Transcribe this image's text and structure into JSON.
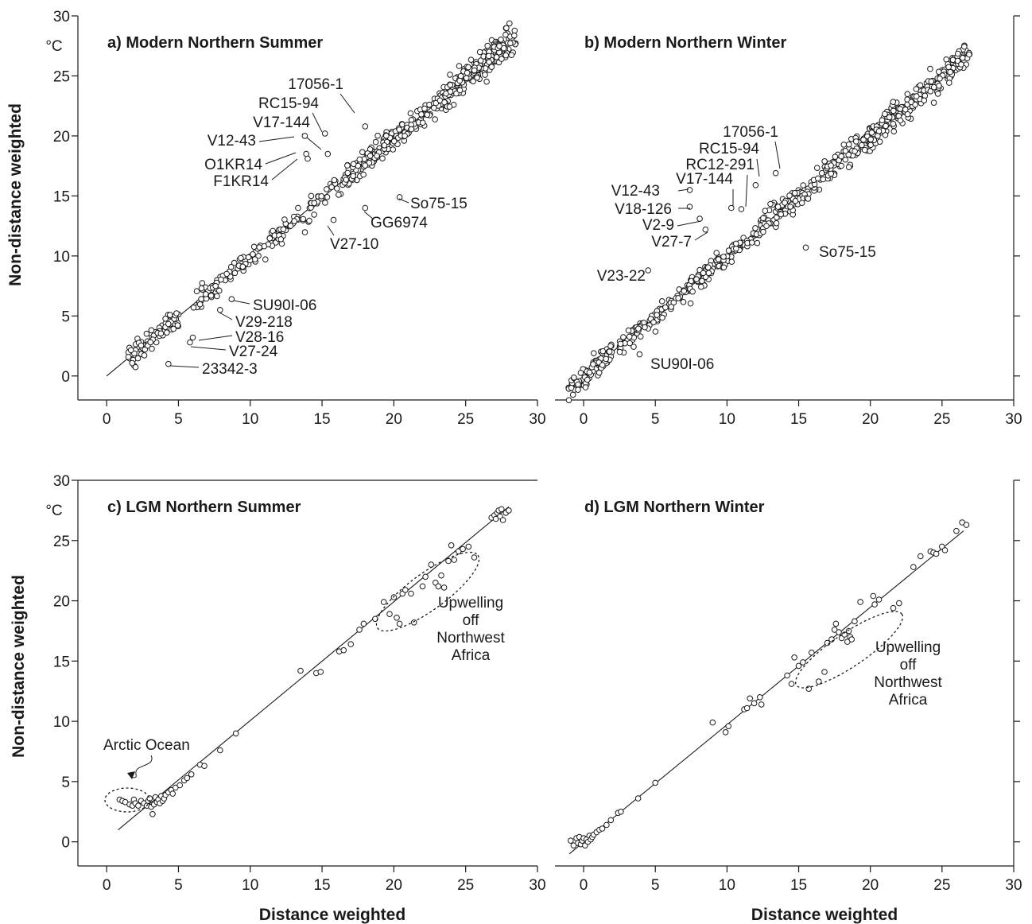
{
  "figure": {
    "ylabel": "Non-distance weighted",
    "xlabel": "Distance weighted",
    "unit": "°C"
  },
  "chart_data": [
    {
      "type": "scatter",
      "title": "a) Modern Northern Summer",
      "xlabel": "",
      "ylabel": "Non-distance weighted",
      "xlim": [
        -2,
        30
      ],
      "ylim": [
        -2,
        30
      ],
      "xticks": [
        0,
        5,
        10,
        15,
        20,
        25,
        30
      ],
      "yticks": [
        0,
        5,
        10,
        15,
        20,
        25,
        30
      ],
      "unit": "°C",
      "fit_line": {
        "x": [
          0,
          28.5
        ],
        "y": [
          0,
          28.2
        ]
      },
      "dense_segments": [
        {
          "x0": 1.5,
          "x1": 5.0,
          "n": 80,
          "scatter": 0.5
        },
        {
          "x0": 6.0,
          "x1": 12.0,
          "n": 90,
          "scatter": 0.35
        },
        {
          "x0": 12.0,
          "x1": 16.5,
          "n": 60,
          "scatter": 0.5
        },
        {
          "x0": 16.5,
          "x1": 23.5,
          "n": 180,
          "scatter": 0.45
        },
        {
          "x0": 23.5,
          "x1": 28.5,
          "n": 200,
          "scatter": 0.6
        }
      ],
      "outliers": [
        {
          "label": "17056-1",
          "x": 18.0,
          "y": 20.8
        },
        {
          "label": "RC15-94",
          "x": 15.2,
          "y": 20.2
        },
        {
          "label": "V17-144",
          "x": 15.4,
          "y": 18.5
        },
        {
          "label": "V12-43",
          "x": 13.8,
          "y": 20.0
        },
        {
          "label": "O1KR14",
          "x": 13.9,
          "y": 18.5
        },
        {
          "label": "F1KR14",
          "x": 14.0,
          "y": 18.1
        },
        {
          "label": "So75-15",
          "x": 20.4,
          "y": 14.9
        },
        {
          "label": "GG6974",
          "x": 18.0,
          "y": 14.0
        },
        {
          "label": "V27-10",
          "x": 15.8,
          "y": 13.0
        },
        {
          "label": "SU90I-06",
          "x": 8.7,
          "y": 6.4
        },
        {
          "label": "V29-218",
          "x": 7.9,
          "y": 5.5
        },
        {
          "label": "V28-16",
          "x": 6.0,
          "y": 3.2
        },
        {
          "label": "V27-24",
          "x": 5.8,
          "y": 2.8
        },
        {
          "label": "23342-3",
          "x": 4.3,
          "y": 1.0
        }
      ]
    },
    {
      "type": "scatter",
      "title": "b) Modern Northern Winter",
      "xlabel": "",
      "ylabel": "",
      "xlim": [
        -2,
        30
      ],
      "ylim": [
        -2,
        30
      ],
      "xticks": [
        0,
        5,
        10,
        15,
        20,
        25,
        30
      ],
      "yticks": [
        0,
        5,
        10,
        15,
        20,
        25,
        30
      ],
      "fit_line": {
        "x": [
          -1,
          27
        ],
        "y": [
          -1,
          27
        ]
      },
      "dense_segments": [
        {
          "x0": -1.2,
          "x1": 2.0,
          "n": 90,
          "scatter": 0.5
        },
        {
          "x0": 2.5,
          "x1": 7.5,
          "n": 90,
          "scatter": 0.4
        },
        {
          "x0": 7.5,
          "x1": 12.5,
          "n": 100,
          "scatter": 0.4
        },
        {
          "x0": 12.5,
          "x1": 20.0,
          "n": 180,
          "scatter": 0.55
        },
        {
          "x0": 20.0,
          "x1": 27.0,
          "n": 200,
          "scatter": 0.55
        }
      ],
      "outliers": [
        {
          "label": "17056-1",
          "x": 13.4,
          "y": 16.9
        },
        {
          "label": "RC15-94",
          "x": 12.0,
          "y": 15.9
        },
        {
          "label": "RC12-291",
          "x": 11.0,
          "y": 13.9
        },
        {
          "label": "V17-144",
          "x": 10.3,
          "y": 14.0
        },
        {
          "label": "V12-43",
          "x": 7.4,
          "y": 15.5
        },
        {
          "label": "V18-126",
          "x": 7.4,
          "y": 14.1
        },
        {
          "label": "V2-9",
          "x": 8.1,
          "y": 13.1
        },
        {
          "label": "V27-7",
          "x": 8.5,
          "y": 12.2
        },
        {
          "label": "So75-15",
          "x": 15.5,
          "y": 10.7
        },
        {
          "label": "V23-22",
          "x": 4.5,
          "y": 8.8
        },
        {
          "label": "SU90I-06",
          "x": 3.9,
          "y": 1.8
        }
      ]
    },
    {
      "type": "scatter",
      "title": "c) LGM Northern Summer",
      "xlabel": "Distance weighted",
      "ylabel": "Non-distance weighted",
      "xlim": [
        -2,
        30
      ],
      "ylim": [
        -2,
        30
      ],
      "xticks": [
        0,
        5,
        10,
        15,
        20,
        25,
        30
      ],
      "yticks": [
        0,
        5,
        10,
        15,
        20,
        25,
        30
      ],
      "unit": "°C",
      "fit_line": {
        "x": [
          0.8,
          28.0
        ],
        "y": [
          1.0,
          27.8
        ]
      },
      "points": [
        [
          0.9,
          3.5
        ],
        [
          1.1,
          3.4
        ],
        [
          1.3,
          3.3
        ],
        [
          1.6,
          3.1
        ],
        [
          1.8,
          3.0
        ],
        [
          1.9,
          3.5
        ],
        [
          2.0,
          3.2
        ],
        [
          2.2,
          3.0
        ],
        [
          2.4,
          3.4
        ],
        [
          2.6,
          3.2
        ],
        [
          2.8,
          3.0
        ],
        [
          2.9,
          3.4
        ],
        [
          3.0,
          3.6
        ],
        [
          3.1,
          2.9
        ],
        [
          3.2,
          2.3
        ],
        [
          3.3,
          3.1
        ],
        [
          3.4,
          3.7
        ],
        [
          3.5,
          3.3
        ],
        [
          3.6,
          3.5
        ],
        [
          3.7,
          3.2
        ],
        [
          3.8,
          3.8
        ],
        [
          3.9,
          3.4
        ],
        [
          4.0,
          3.6
        ],
        [
          4.1,
          3.9
        ],
        [
          4.3,
          4.1
        ],
        [
          4.5,
          4.3
        ],
        [
          4.6,
          4.0
        ],
        [
          4.8,
          4.5
        ],
        [
          5.1,
          4.7
        ],
        [
          5.4,
          5.1
        ],
        [
          5.6,
          5.3
        ],
        [
          5.9,
          5.6
        ],
        [
          6.5,
          6.4
        ],
        [
          6.8,
          6.3
        ],
        [
          7.9,
          7.6
        ],
        [
          9.0,
          9.0
        ],
        [
          13.5,
          14.2
        ],
        [
          14.6,
          14.0
        ],
        [
          14.9,
          14.1
        ],
        [
          16.2,
          15.8
        ],
        [
          16.5,
          15.9
        ],
        [
          17.0,
          16.4
        ],
        [
          17.6,
          17.6
        ],
        [
          17.9,
          18.1
        ],
        [
          18.7,
          18.5
        ],
        [
          19.3,
          19.9
        ],
        [
          19.7,
          18.9
        ],
        [
          20.0,
          20.3
        ],
        [
          20.2,
          18.6
        ],
        [
          20.4,
          18.1
        ],
        [
          20.6,
          20.6
        ],
        [
          20.8,
          20.9
        ],
        [
          21.2,
          20.6
        ],
        [
          21.4,
          18.2
        ],
        [
          22.0,
          21.2
        ],
        [
          22.2,
          22.0
        ],
        [
          22.6,
          23.0
        ],
        [
          22.9,
          21.5
        ],
        [
          23.1,
          21.2
        ],
        [
          23.3,
          22.1
        ],
        [
          23.5,
          21.1
        ],
        [
          23.8,
          23.3
        ],
        [
          24.0,
          24.6
        ],
        [
          24.2,
          23.4
        ],
        [
          24.5,
          24.1
        ],
        [
          24.8,
          24.3
        ],
        [
          25.2,
          24.5
        ],
        [
          25.6,
          23.6
        ],
        [
          26.8,
          26.9
        ],
        [
          27.0,
          27.1
        ],
        [
          27.1,
          26.8
        ],
        [
          27.2,
          27.3
        ],
        [
          27.3,
          27.5
        ],
        [
          27.4,
          27.0
        ],
        [
          27.5,
          27.6
        ],
        [
          27.6,
          26.7
        ],
        [
          27.8,
          27.3
        ],
        [
          28.0,
          27.5
        ]
      ],
      "annotations": [
        {
          "label": "Arctic Ocean"
        },
        {
          "label": "Upwelling off Northwest Africa"
        }
      ]
    },
    {
      "type": "scatter",
      "title": "d) LGM Northern Winter",
      "xlabel": "Distance weighted",
      "ylabel": "",
      "xlim": [
        -2,
        30
      ],
      "ylim": [
        -2,
        30
      ],
      "xticks": [
        0,
        5,
        10,
        15,
        20,
        25,
        30
      ],
      "yticks": [
        0,
        5,
        10,
        15,
        20,
        25,
        30
      ],
      "fit_line": {
        "x": [
          -1.0,
          26.5
        ],
        "y": [
          -1.0,
          25.8
        ]
      },
      "points": [
        [
          -0.9,
          0.1
        ],
        [
          -0.7,
          -0.3
        ],
        [
          -0.5,
          0.3
        ],
        [
          -0.4,
          -0.1
        ],
        [
          -0.3,
          0.4
        ],
        [
          -0.2,
          -0.2
        ],
        [
          -0.1,
          0.1
        ],
        [
          0.0,
          0.3
        ],
        [
          0.1,
          -0.3
        ],
        [
          0.2,
          0.2
        ],
        [
          0.3,
          0.0
        ],
        [
          0.4,
          0.5
        ],
        [
          0.5,
          0.2
        ],
        [
          0.6,
          0.4
        ],
        [
          0.7,
          0.6
        ],
        [
          0.9,
          0.8
        ],
        [
          1.1,
          1.0
        ],
        [
          1.3,
          1.1
        ],
        [
          1.6,
          1.4
        ],
        [
          1.9,
          1.8
        ],
        [
          2.4,
          2.4
        ],
        [
          2.6,
          2.5
        ],
        [
          3.8,
          3.6
        ],
        [
          5.0,
          4.9
        ],
        [
          9.0,
          9.9
        ],
        [
          9.9,
          9.1
        ],
        [
          10.1,
          9.6
        ],
        [
          11.2,
          11.0
        ],
        [
          11.4,
          11.1
        ],
        [
          11.6,
          11.9
        ],
        [
          11.9,
          11.5
        ],
        [
          12.3,
          12.0
        ],
        [
          12.4,
          11.4
        ],
        [
          14.2,
          13.8
        ],
        [
          14.5,
          13.1
        ],
        [
          14.7,
          15.3
        ],
        [
          15.0,
          14.6
        ],
        [
          15.3,
          14.9
        ],
        [
          15.7,
          12.7
        ],
        [
          15.9,
          15.7
        ],
        [
          16.4,
          13.3
        ],
        [
          16.8,
          14.1
        ],
        [
          17.0,
          16.5
        ],
        [
          17.3,
          16.8
        ],
        [
          17.5,
          17.6
        ],
        [
          17.6,
          18.1
        ],
        [
          17.8,
          17.4
        ],
        [
          18.0,
          16.9
        ],
        [
          18.2,
          17.2
        ],
        [
          18.4,
          16.6
        ],
        [
          18.5,
          17.5
        ],
        [
          18.6,
          17.0
        ],
        [
          18.7,
          16.8
        ],
        [
          18.9,
          18.3
        ],
        [
          19.3,
          19.9
        ],
        [
          20.2,
          20.4
        ],
        [
          20.3,
          19.7
        ],
        [
          20.6,
          20.1
        ],
        [
          21.6,
          19.4
        ],
        [
          22.0,
          19.8
        ],
        [
          23.0,
          22.8
        ],
        [
          23.5,
          23.7
        ],
        [
          24.2,
          24.1
        ],
        [
          24.4,
          24.0
        ],
        [
          24.6,
          23.9
        ],
        [
          25.0,
          24.5
        ],
        [
          25.2,
          24.2
        ],
        [
          26.0,
          25.8
        ],
        [
          26.4,
          26.5
        ],
        [
          26.7,
          26.3
        ]
      ],
      "annotations": [
        {
          "label": "Upwelling off Northwest Africa"
        }
      ]
    }
  ],
  "labels": {
    "arctic": "Arctic Ocean",
    "upwelling_lines": [
      "Upwelling",
      "off",
      "Northwest",
      "Africa"
    ]
  }
}
